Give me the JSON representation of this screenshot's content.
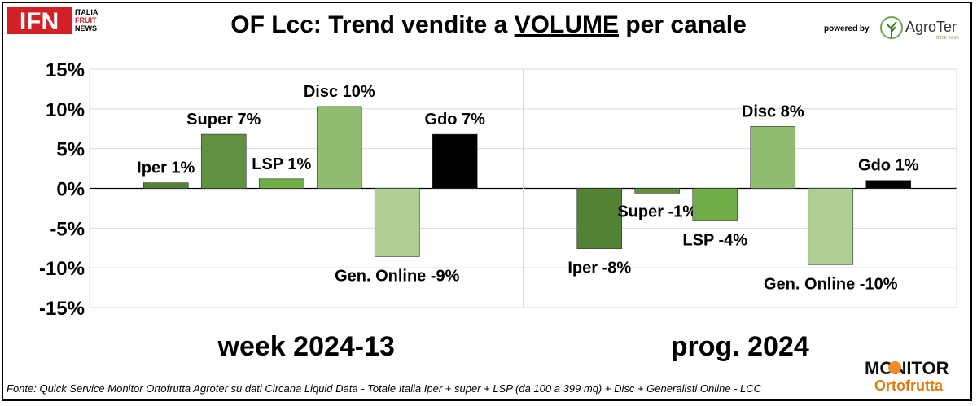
{
  "header": {
    "title_prefix": "OF Lcc: Trend vendite a ",
    "title_emph": "VOLUME",
    "title_suffix": " per canale",
    "powered_by": "powered by"
  },
  "logos": {
    "ifn_main": "IFN",
    "ifn_side": [
      "ITALIA",
      "FRUIT",
      "NEWS"
    ],
    "agroter_name": "AgroTer",
    "agroter_tagline": "think fresh",
    "monitor_top": "MONITOR",
    "monitor_bottom": "Ortofrutta"
  },
  "footer": {
    "source": "Fonte: Quick Service Monitor Ortofrutta Agroter su dati Circana Liquid Data - Totale Italia Iper + super + LSP (da 100 a 399 mq) + Disc + Generalisti Online - LCC"
  },
  "chart_data": {
    "type": "bar",
    "ylim": [
      -15,
      15
    ],
    "yticks": [
      -15,
      -10,
      -5,
      0,
      5,
      10,
      15
    ],
    "ytick_labels": [
      "-15%",
      "-10%",
      "-5%",
      "0%",
      "5%",
      "10%",
      "15%"
    ],
    "grid": true,
    "colors": {
      "Iper": "#548235",
      "Super": "#5e9140",
      "LSP": "#70ad47",
      "Disc": "#8fbc6f",
      "Gen. Online": "#aed094",
      "Gdo": "#000000"
    },
    "panels": [
      {
        "label": "week 2024-13",
        "bars": [
          {
            "channel": "Iper",
            "value": 0.7,
            "label": "Iper 1%"
          },
          {
            "channel": "Super",
            "value": 6.8,
            "label": "Super 7%"
          },
          {
            "channel": "LSP",
            "value": 1.2,
            "label": "LSP 1%"
          },
          {
            "channel": "Disc",
            "value": 10.3,
            "label": "Disc 10%"
          },
          {
            "channel": "Gen. Online",
            "value": -8.6,
            "label": "Gen. Online -9%"
          },
          {
            "channel": "Gdo",
            "value": 6.8,
            "label": "Gdo 7%"
          }
        ]
      },
      {
        "label": "prog. 2024",
        "bars": [
          {
            "channel": "Iper",
            "value": -7.6,
            "label": "Iper -8%"
          },
          {
            "channel": "Super",
            "value": -0.6,
            "label": "Super -1%"
          },
          {
            "channel": "LSP",
            "value": -4.1,
            "label": "LSP -4%"
          },
          {
            "channel": "Disc",
            "value": 7.8,
            "label": "Disc 8%"
          },
          {
            "channel": "Gen. Online",
            "value": -9.6,
            "label": "Gen. Online -10%"
          },
          {
            "channel": "Gdo",
            "value": 1.0,
            "label": "Gdo 1%"
          }
        ]
      }
    ]
  }
}
